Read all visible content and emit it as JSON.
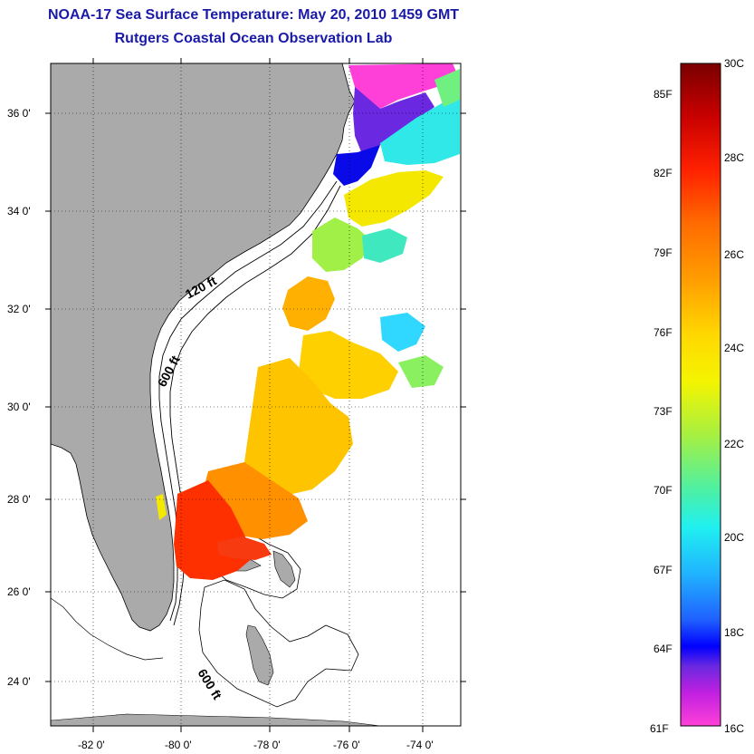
{
  "title": "NOAA-17 Sea Surface Temperature:  May 20, 2010 1459 GMT",
  "subtitle": "Rutgers Coastal Ocean Observation Lab",
  "lat_labels": [
    "36 0'",
    "34 0'",
    "32 0'",
    "30 0'",
    "28 0'",
    "26 0'",
    "24 0'"
  ],
  "lon_labels": [
    "-82 0'",
    "-80 0'",
    "-78 0'",
    "-76 0'",
    "-74 0'"
  ],
  "contour_labels": [
    "120 ft",
    "600 ft",
    "600 ft"
  ],
  "colorbar": {
    "fahrenheit_labels": [
      "85F",
      "82F",
      "79F",
      "76F",
      "73F",
      "70F",
      "67F",
      "64F",
      "61F"
    ],
    "celsius_labels": [
      "30C",
      "28C",
      "26C",
      "24C",
      "22C",
      "20C",
      "18C",
      "16C"
    ],
    "colors": [
      "#7a0000",
      "#c80000",
      "#ff2000",
      "#ff6a00",
      "#ffa000",
      "#ffd800",
      "#f4f400",
      "#a8f040",
      "#50f0a0",
      "#20f0f0",
      "#20b4ff",
      "#2060ff",
      "#0000ff",
      "#6a28e0",
      "#c020e0",
      "#ff40d8"
    ]
  },
  "legend_colors": {
    "land": "#aaaaaa",
    "ocean": "#ffffff",
    "title": "#1a1aa8"
  }
}
